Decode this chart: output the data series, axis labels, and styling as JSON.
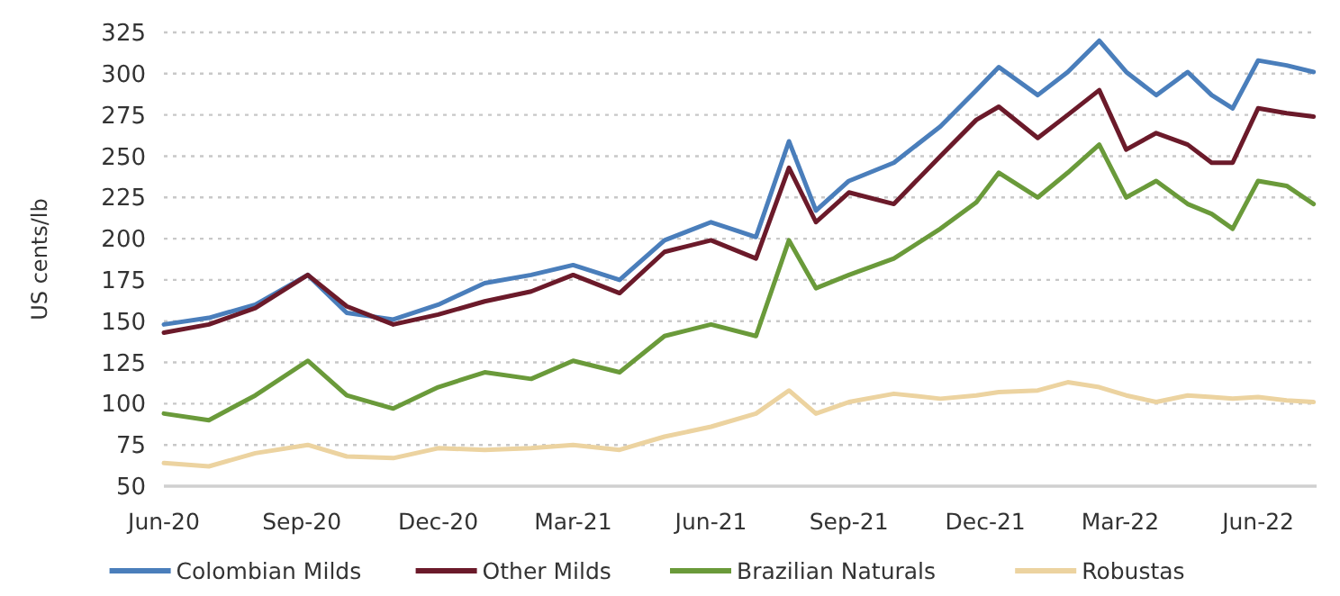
{
  "chart_data": {
    "type": "line",
    "ylabel": "US cents/lb",
    "x": [
      "2020-06-01",
      "2020-07-01",
      "2020-08-01",
      "2020-09-05",
      "2020-10-01",
      "2020-11-01",
      "2020-12-01",
      "2021-01-01",
      "2021-02-01",
      "2021-03-01",
      "2021-04-01",
      "2021-05-01",
      "2021-06-01",
      "2021-07-01",
      "2021-07-23",
      "2021-08-10",
      "2021-09-01",
      "2021-10-01",
      "2021-11-01",
      "2021-11-25",
      "2021-12-10",
      "2022-01-05",
      "2022-01-25",
      "2022-02-15",
      "2022-03-05",
      "2022-03-25",
      "2022-04-15",
      "2022-05-01",
      "2022-05-15",
      "2022-06-01",
      "2022-06-20",
      "2022-07-08"
    ],
    "series": [
      {
        "name": "Colombian Milds",
        "color": "#4a7ebb",
        "values": [
          148,
          152,
          160,
          178,
          155,
          151,
          160,
          173,
          178,
          184,
          175,
          199,
          210,
          201,
          259,
          217,
          235,
          246,
          268,
          290,
          304,
          287,
          301,
          320,
          301,
          287,
          301,
          287,
          279,
          308,
          305,
          301
        ]
      },
      {
        "name": "Other Milds",
        "color": "#6b1a2a",
        "values": [
          143,
          148,
          158,
          178,
          159,
          148,
          154,
          162,
          168,
          178,
          167,
          192,
          199,
          188,
          243,
          210,
          228,
          221,
          250,
          272,
          280,
          261,
          275,
          290,
          254,
          264,
          257,
          246,
          246,
          279,
          276,
          274
        ]
      },
      {
        "name": "Brazilian Naturals",
        "color": "#6a9a3a",
        "values": [
          94,
          90,
          105,
          126,
          105,
          97,
          110,
          119,
          115,
          126,
          119,
          141,
          148,
          141,
          199,
          170,
          178,
          188,
          206,
          222,
          240,
          225,
          240,
          257,
          225,
          235,
          221,
          215,
          206,
          235,
          232,
          221
        ]
      },
      {
        "name": "Robustas",
        "color": "#ecd3a0",
        "values": [
          64,
          62,
          70,
          75,
          68,
          67,
          73,
          72,
          73,
          75,
          72,
          80,
          86,
          94,
          108,
          94,
          101,
          106,
          103,
          105,
          107,
          108,
          113,
          110,
          105,
          101,
          105,
          104,
          103,
          104,
          102,
          101
        ]
      }
    ],
    "xlim": [
      "2020-06-01",
      "2022-07-10"
    ],
    "xticks": [
      {
        "value": "2020-06-01",
        "label": "Jun-20"
      },
      {
        "value": "2020-09-01",
        "label": "Sep-20"
      },
      {
        "value": "2020-12-01",
        "label": "Dec-20"
      },
      {
        "value": "2021-03-01",
        "label": "Mar-21"
      },
      {
        "value": "2021-06-01",
        "label": "Jun-21"
      },
      {
        "value": "2021-09-01",
        "label": "Sep-21"
      },
      {
        "value": "2021-12-01",
        "label": "Dec-21"
      },
      {
        "value": "2022-03-01",
        "label": "Mar-22"
      },
      {
        "value": "2022-06-01",
        "label": "Jun-22"
      }
    ],
    "ylim": [
      50,
      325
    ],
    "yticks": [
      50,
      75,
      100,
      125,
      150,
      175,
      200,
      225,
      250,
      275,
      300,
      325
    ],
    "grid": "y",
    "legend": "bottom",
    "line_style": "solid"
  }
}
